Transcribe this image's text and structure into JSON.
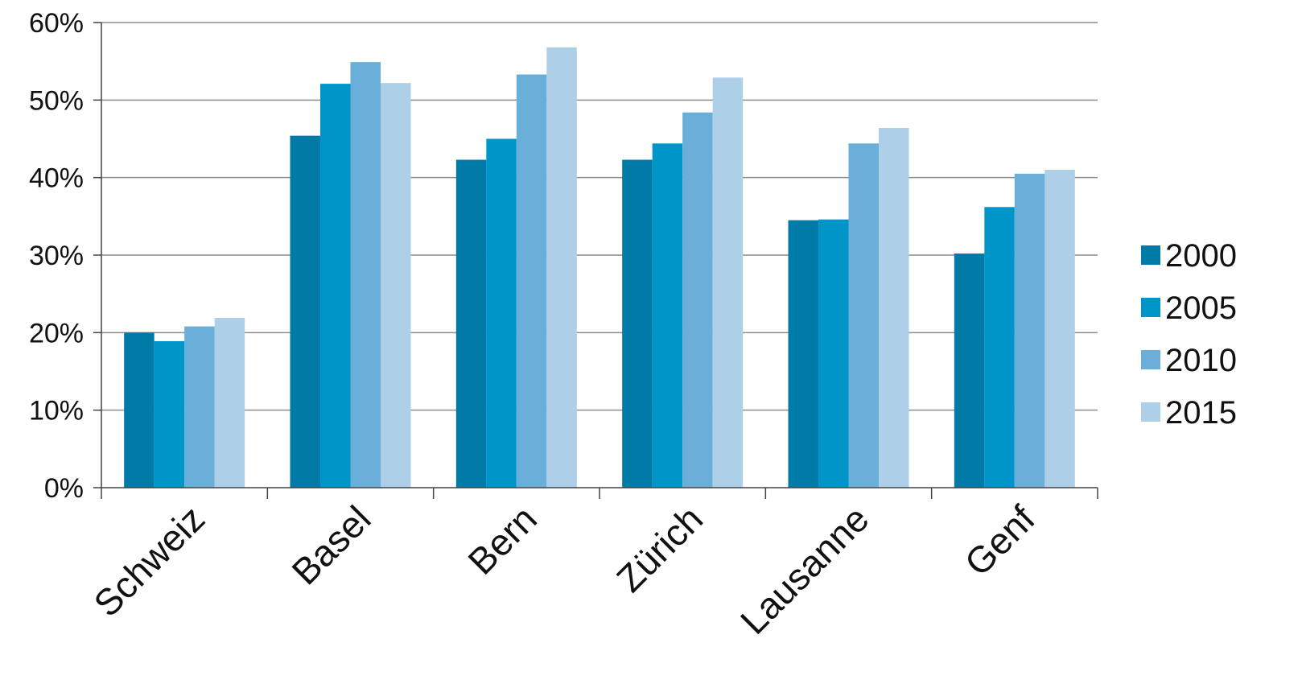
{
  "chart_data": {
    "type": "bar",
    "title": "",
    "xlabel": "",
    "ylabel": "",
    "ylim": [
      0,
      60
    ],
    "yticks": [
      "0%",
      "10%",
      "20%",
      "30%",
      "40%",
      "50%",
      "60%"
    ],
    "categories": [
      "Schweiz",
      "Basel",
      "Bern",
      "Zürich",
      "Lausanne",
      "Genf"
    ],
    "series": [
      {
        "name": "2000",
        "color": "#007BA7",
        "values": [
          20,
          45.4,
          42.3,
          42.3,
          34.5,
          30.2
        ]
      },
      {
        "name": "2005",
        "color": "#0095C8",
        "values": [
          18.9,
          52.1,
          45.0,
          44.4,
          34.6,
          36.2
        ]
      },
      {
        "name": "2010",
        "color": "#6AAEDA",
        "values": [
          20.8,
          54.9,
          53.3,
          48.4,
          44.4,
          40.5
        ]
      },
      {
        "name": "2015",
        "color": "#AECFE8",
        "values": [
          21.9,
          52.2,
          56.8,
          52.9,
          46.4,
          41.0
        ]
      }
    ],
    "grid": true,
    "legend": "right"
  }
}
